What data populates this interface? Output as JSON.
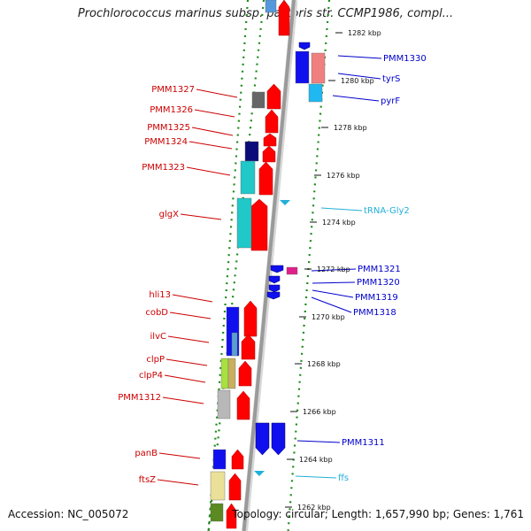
{
  "title": "Prochlorococcus marinus subsp. pastoris str. CCMP1986, compl...",
  "accession": "Accession: NC_005072",
  "topology": "Topology: circular; Length: 1,657,990 bp; Genes: 1,761",
  "ticks": [
    "1282 kbp",
    "1280 kbp",
    "1278 kbp",
    "1276 kbp",
    "1274 kbp",
    "1272 kbp",
    "1270 kbp",
    "1268 kbp",
    "1266 kbp",
    "1264 kbp",
    "1262 kbp"
  ],
  "labels": {
    "left": [
      "PMM1327",
      "PMM1326",
      "PMM1325",
      "PMM1324",
      "PMM1323",
      "glgX",
      "hli13",
      "cobD",
      "ilvC",
      "clpP",
      "clpP4",
      "PMM1312",
      "panB",
      "ftsZ"
    ],
    "right": [
      "PMM1330",
      "tyrS",
      "pyrF",
      "tRNA-Gly2",
      "PMM1321",
      "PMM1320",
      "PMM1319",
      "PMM1318",
      "PMM1311",
      "ffs"
    ]
  },
  "colors": {
    "left_label": "#cc0000",
    "right_label": "#0000cc",
    "rna_label": "#22b0d8",
    "forward_gene": "#ff0000",
    "reverse_gene": "#1010ee",
    "backbone": "#9a9a9a",
    "dotted_ring": "#1a8a1a"
  }
}
